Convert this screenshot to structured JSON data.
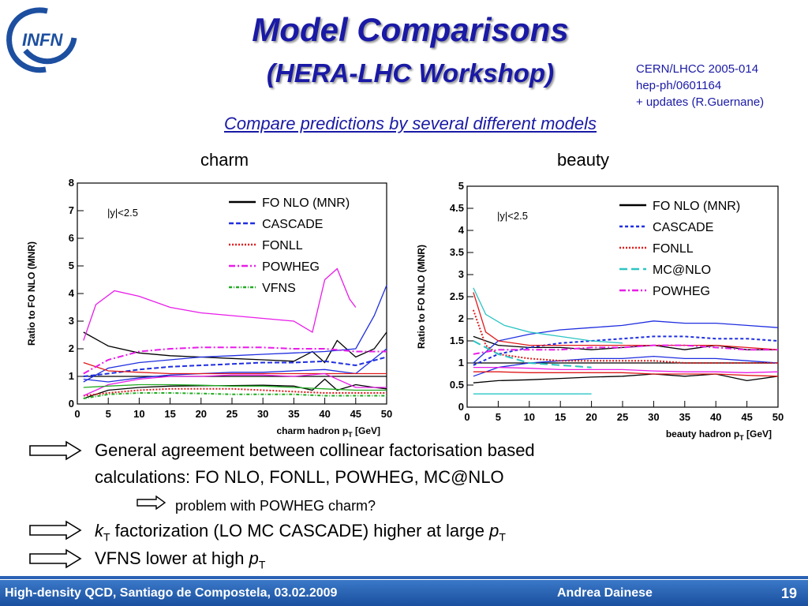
{
  "logo_text": "INFN",
  "title": "Model Comparisons",
  "subtitle_workshop": "(HERA-LHC Workshop)",
  "references": [
    "CERN/LHCC 2005-014",
    "hep-ph/0601164",
    "+ updates (R.Guernane)"
  ],
  "compare_text": "Compare predictions by several different models",
  "bullets": {
    "b1_line1": "General agreement between collinear factorisation based",
    "b1_line2": "calculations: FO NLO, FONLL, POWHEG, MC@NLO",
    "b2": "problem with POWHEG charm?",
    "b3_k": "k",
    "b3_T": "T",
    "b3_mid": " factorization (LO MC CASCADE) higher at large ",
    "b3_p": "p",
    "b3_pT": "T",
    "b4_text": "VFNS lower at high ",
    "b4_p": "p",
    "b4_T": "T"
  },
  "footer": {
    "left": "High-density QCD, Santiago de Compostela, 03.02.2009",
    "author": "Andrea Dainese",
    "page": "19"
  },
  "colors": {
    "title": "#1a1aa6",
    "FO": "#000000",
    "CASCADE": "#1f2ee0",
    "FONLL": "#e01a1a",
    "POWHEG": "#e81ce8",
    "VFNS": "#22aa22",
    "MCNLO": "#2cc4c4"
  },
  "chart_data": [
    {
      "type": "line",
      "panel_label": "charm",
      "title": "",
      "xlabel": "charm hadron p",
      "xlabel_sub": "T",
      "xlabel_unit": " [GeV]",
      "ylabel": "Ratio to FO NLO (MNR)",
      "annotation": "|y|<2.5",
      "xlim": [
        0,
        50
      ],
      "ylim": [
        0,
        8
      ],
      "xticks": [
        0,
        5,
        10,
        15,
        20,
        25,
        30,
        35,
        40,
        45,
        50
      ],
      "yticks": [
        0,
        1,
        2,
        3,
        4,
        5,
        6,
        7,
        8
      ],
      "legend": [
        {
          "name": "FO NLO (MNR)",
          "color": "#000000",
          "dash": ""
        },
        {
          "name": "CASCADE",
          "color": "#1f2ee0",
          "dash": "6,3"
        },
        {
          "name": "FONLL",
          "color": "#e01a1a",
          "dash": "2,2"
        },
        {
          "name": "POWHEG",
          "color": "#e81ce8",
          "dash": "8,3,2,3"
        },
        {
          "name": "VFNS",
          "color": "#22aa22",
          "dash": "4,2,1,2"
        }
      ],
      "series": [
        {
          "name": "FO NLO (MNR)",
          "color": "#000000",
          "dash": "",
          "x": [
            1,
            50
          ],
          "y": [
            1.0,
            1.0
          ]
        },
        {
          "name": "FO NLO (MNR)",
          "color": "#000000",
          "dash": "",
          "x": [
            1,
            5,
            10,
            15,
            20,
            25,
            30,
            35,
            38,
            40,
            42,
            45,
            48,
            50
          ],
          "y": [
            2.6,
            2.1,
            1.85,
            1.75,
            1.7,
            1.65,
            1.6,
            1.55,
            1.9,
            1.5,
            2.3,
            1.7,
            2.0,
            2.6
          ]
        },
        {
          "name": "FO NLO (MNR)",
          "color": "#000000",
          "dash": "",
          "x": [
            1,
            5,
            10,
            15,
            20,
            25,
            30,
            35,
            38,
            40,
            42,
            45,
            48,
            50
          ],
          "y": [
            0.2,
            0.5,
            0.6,
            0.65,
            0.66,
            0.67,
            0.68,
            0.65,
            0.5,
            0.9,
            0.5,
            0.7,
            0.6,
            0.55
          ]
        },
        {
          "name": "CASCADE",
          "color": "#1f2ee0",
          "dash": "6,3",
          "x": [
            1,
            5,
            10,
            15,
            20,
            25,
            30,
            35,
            40,
            45,
            50
          ],
          "y": [
            1.0,
            1.1,
            1.25,
            1.35,
            1.4,
            1.45,
            1.5,
            1.5,
            1.55,
            1.4,
            1.7
          ]
        },
        {
          "name": "CASCADE",
          "color": "#1f2ee0",
          "dash": "",
          "x": [
            1,
            5,
            10,
            15,
            20,
            25,
            30,
            35,
            40,
            45,
            48,
            50
          ],
          "y": [
            0.8,
            1.3,
            1.5,
            1.6,
            1.7,
            1.75,
            1.8,
            1.85,
            1.9,
            2.0,
            3.2,
            4.3
          ]
        },
        {
          "name": "CASCADE",
          "color": "#1f2ee0",
          "dash": "",
          "x": [
            1,
            5,
            10,
            15,
            20,
            25,
            30,
            35,
            40,
            45,
            50
          ],
          "y": [
            0.9,
            0.8,
            0.95,
            1.05,
            1.1,
            1.15,
            1.15,
            1.2,
            1.25,
            1.1,
            2.0
          ]
        },
        {
          "name": "FONLL",
          "color": "#e01a1a",
          "dash": "2,2",
          "x": [
            1,
            5,
            10,
            15,
            20,
            25,
            30,
            35,
            40,
            45,
            50
          ],
          "y": [
            0.3,
            0.4,
            0.5,
            0.55,
            0.55,
            0.55,
            0.5,
            0.45,
            0.4,
            0.4,
            0.4
          ]
        },
        {
          "name": "FONLL",
          "color": "#e01a1a",
          "dash": "",
          "x": [
            1,
            5,
            10,
            15,
            20,
            25,
            30,
            35,
            40,
            45,
            50
          ],
          "y": [
            1.5,
            1.2,
            1.15,
            1.1,
            1.1,
            1.1,
            1.1,
            1.1,
            1.1,
            1.1,
            1.1
          ]
        },
        {
          "name": "POWHEG",
          "color": "#e81ce8",
          "dash": "8,3,2,3",
          "x": [
            1,
            5,
            10,
            15,
            20,
            25,
            30,
            35,
            40,
            45,
            50
          ],
          "y": [
            1.1,
            1.6,
            1.9,
            2.0,
            2.05,
            2.05,
            2.05,
            2.0,
            2.0,
            1.9,
            1.9
          ]
        },
        {
          "name": "POWHEG",
          "color": "#e81ce8",
          "dash": "",
          "x": [
            1,
            3,
            6,
            10,
            15,
            20,
            25,
            30,
            35,
            38,
            40,
            42,
            44,
            45
          ],
          "y": [
            2.3,
            3.6,
            4.1,
            3.9,
            3.5,
            3.3,
            3.2,
            3.1,
            3.0,
            2.6,
            4.5,
            4.9,
            3.8,
            3.5
          ]
        },
        {
          "name": "POWHEG",
          "color": "#e81ce8",
          "dash": "",
          "x": [
            1,
            5,
            10,
            15,
            20,
            25,
            30,
            35,
            40,
            45,
            50
          ],
          "y": [
            0.3,
            0.7,
            0.9,
            1.0,
            1.0,
            1.05,
            1.05,
            1.0,
            1.1,
            0.6,
            0.6
          ]
        },
        {
          "name": "VFNS",
          "color": "#22aa22",
          "dash": "4,2,1,2",
          "x": [
            1,
            5,
            10,
            15,
            20,
            25,
            30,
            35,
            40,
            45,
            50
          ],
          "y": [
            0.2,
            0.35,
            0.4,
            0.4,
            0.38,
            0.35,
            0.35,
            0.35,
            0.3,
            0.3,
            0.3
          ]
        },
        {
          "name": "VFNS",
          "color": "#22aa22",
          "dash": "",
          "x": [
            1,
            5,
            10,
            15,
            20,
            25,
            30,
            35,
            40,
            45,
            50
          ],
          "y": [
            0.6,
            0.65,
            0.7,
            0.7,
            0.68,
            0.65,
            0.65,
            0.6,
            0.55,
            0.5,
            0.5
          ]
        }
      ]
    },
    {
      "type": "line",
      "panel_label": "beauty",
      "title": "",
      "xlabel": "beauty hadron p",
      "xlabel_sub": "T",
      "xlabel_unit": " [GeV]",
      "ylabel": "Ratio to FO NLO (MNR)",
      "annotation": "|y|<2.5",
      "xlim": [
        0,
        50
      ],
      "ylim": [
        0,
        5
      ],
      "xticks": [
        0,
        5,
        10,
        15,
        20,
        25,
        30,
        35,
        40,
        45,
        50
      ],
      "yticks": [
        0,
        0.5,
        1,
        1.5,
        2,
        2.5,
        3,
        3.5,
        4,
        4.5,
        5
      ],
      "legend": [
        {
          "name": "FO NLO (MNR)",
          "color": "#000000",
          "dash": ""
        },
        {
          "name": "CASCADE",
          "color": "#1f2ee0",
          "dash": "4,3"
        },
        {
          "name": "FONLL",
          "color": "#e01a1a",
          "dash": "2,2"
        },
        {
          "name": "MC@NLO",
          "color": "#2cc4c4",
          "dash": "10,5"
        },
        {
          "name": "POWHEG",
          "color": "#e81ce8",
          "dash": "8,3,2,3"
        }
      ],
      "series": [
        {
          "name": "FO NLO (MNR)",
          "color": "#000000",
          "dash": "",
          "x": [
            1,
            50
          ],
          "y": [
            1.0,
            1.0
          ]
        },
        {
          "name": "FO NLO (MNR)",
          "color": "#000000",
          "dash": "",
          "x": [
            1,
            5,
            10,
            15,
            20,
            25,
            30,
            35,
            40,
            45,
            50
          ],
          "y": [
            1.6,
            1.4,
            1.35,
            1.35,
            1.3,
            1.35,
            1.4,
            1.3,
            1.4,
            1.3,
            1.3
          ]
        },
        {
          "name": "FO NLO (MNR)",
          "color": "#000000",
          "dash": "",
          "x": [
            1,
            5,
            10,
            15,
            20,
            25,
            30,
            35,
            40,
            45,
            50
          ],
          "y": [
            0.55,
            0.6,
            0.62,
            0.65,
            0.68,
            0.7,
            0.75,
            0.7,
            0.75,
            0.6,
            0.7
          ]
        },
        {
          "name": "CASCADE",
          "color": "#1f2ee0",
          "dash": "4,3",
          "x": [
            1,
            5,
            10,
            15,
            20,
            25,
            30,
            35,
            40,
            45,
            50
          ],
          "y": [
            0.95,
            1.2,
            1.35,
            1.45,
            1.5,
            1.55,
            1.6,
            1.6,
            1.55,
            1.55,
            1.5
          ]
        },
        {
          "name": "CASCADE",
          "color": "#1f2ee0",
          "dash": "",
          "x": [
            1,
            5,
            10,
            15,
            20,
            25,
            30,
            35,
            40,
            45,
            50
          ],
          "y": [
            1.0,
            1.5,
            1.65,
            1.75,
            1.8,
            1.85,
            1.95,
            1.9,
            1.9,
            1.85,
            1.8
          ]
        },
        {
          "name": "CASCADE",
          "color": "#1f2ee0",
          "dash": "",
          "x": [
            1,
            5,
            10,
            15,
            20,
            25,
            30,
            35,
            40,
            45,
            50
          ],
          "y": [
            0.7,
            0.9,
            1.0,
            1.05,
            1.1,
            1.1,
            1.15,
            1.1,
            1.1,
            1.05,
            1.0
          ]
        },
        {
          "name": "FONLL",
          "color": "#e01a1a",
          "dash": "2,2",
          "x": [
            1,
            3,
            5,
            10,
            15,
            20,
            25,
            30,
            35,
            40,
            45,
            50
          ],
          "y": [
            2.2,
            1.4,
            1.2,
            1.1,
            1.05,
            1.05,
            1.05,
            1.05,
            1.0,
            1.0,
            1.0,
            1.0
          ]
        },
        {
          "name": "FONLL",
          "color": "#e01a1a",
          "dash": "",
          "x": [
            1,
            3,
            5,
            10,
            15,
            20,
            25,
            30,
            35,
            40,
            45,
            50
          ],
          "y": [
            2.6,
            1.7,
            1.5,
            1.4,
            1.4,
            1.4,
            1.4,
            1.4,
            1.4,
            1.4,
            1.35,
            1.3
          ]
        },
        {
          "name": "FONLL",
          "color": "#e01a1a",
          "dash": "",
          "x": [
            1,
            5,
            10,
            15,
            20,
            25,
            30,
            35,
            40,
            45,
            50
          ],
          "y": [
            0.8,
            0.8,
            0.78,
            0.78,
            0.78,
            0.78,
            0.75,
            0.75,
            0.75,
            0.72,
            0.7
          ]
        },
        {
          "name": "MC@NLO",
          "color": "#2cc4c4",
          "dash": "10,5",
          "x": [
            1,
            5,
            10,
            15,
            20
          ],
          "y": [
            1.5,
            1.2,
            1.0,
            0.95,
            0.9
          ]
        },
        {
          "name": "MC@NLO",
          "color": "#2cc4c4",
          "dash": "",
          "x": [
            1,
            3,
            6,
            10,
            15,
            20,
            25
          ],
          "y": [
            2.7,
            2.1,
            1.85,
            1.7,
            1.6,
            1.5,
            1.45
          ]
        },
        {
          "name": "MC@NLO",
          "color": "#2cc4c4",
          "dash": "",
          "x": [
            1,
            5,
            10,
            15,
            20
          ],
          "y": [
            0.3,
            0.3,
            0.3,
            0.3,
            0.3
          ]
        },
        {
          "name": "POWHEG",
          "color": "#e81ce8",
          "dash": "8,3,2,3",
          "x": [
            1,
            5,
            10,
            15,
            20,
            25,
            30,
            35,
            40,
            45,
            50
          ],
          "y": [
            1.2,
            1.3,
            1.3,
            1.3,
            1.35,
            1.35,
            1.4,
            1.4,
            1.35,
            1.3,
            1.3
          ]
        },
        {
          "name": "POWHEG",
          "color": "#e81ce8",
          "dash": "",
          "x": [
            1,
            5,
            10,
            15,
            20,
            25,
            30,
            35,
            40,
            45,
            50
          ],
          "y": [
            0.9,
            0.9,
            0.88,
            0.85,
            0.85,
            0.85,
            0.82,
            0.8,
            0.8,
            0.78,
            0.8
          ]
        }
      ]
    }
  ]
}
